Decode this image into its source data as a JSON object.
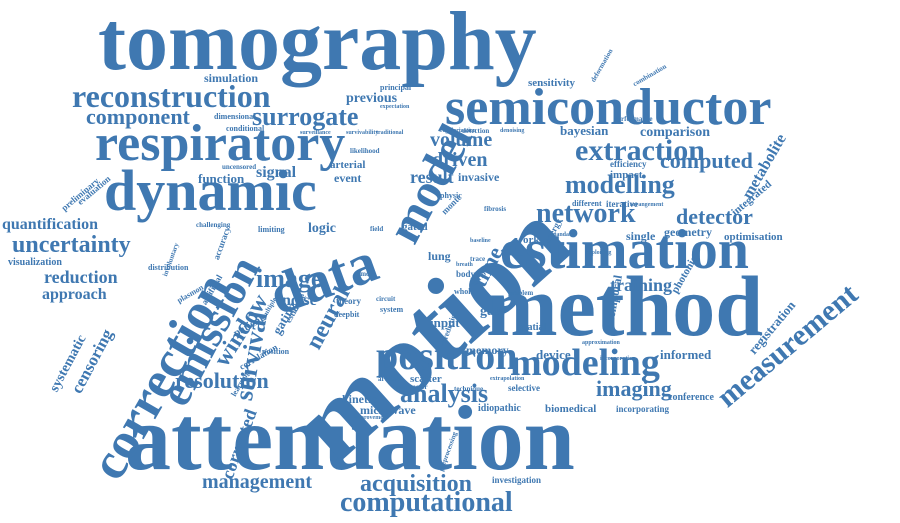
{
  "word_cloud": {
    "color": "#3f78b1",
    "background": "#ffffff",
    "words": [
      {
        "key": "tomography",
        "text": "tomography"
      },
      {
        "key": "attenuation",
        "text": "attenuation"
      },
      {
        "key": "motion",
        "text": "motion"
      },
      {
        "key": "method",
        "text": "method"
      },
      {
        "key": "semiconductor",
        "text": "semiconductor"
      },
      {
        "key": "respiratory",
        "text": "respiratory"
      },
      {
        "key": "dynamic",
        "text": "dynamic"
      },
      {
        "key": "reconstruction",
        "text": "reconstruction"
      },
      {
        "key": "estimation",
        "text": "estimation"
      },
      {
        "key": "correction",
        "text": "correction"
      },
      {
        "key": "emission",
        "text": "emission"
      },
      {
        "key": "data",
        "text": "data"
      },
      {
        "key": "model",
        "text": "model"
      },
      {
        "key": "positron",
        "text": "positron"
      },
      {
        "key": "modeling",
        "text": "modeling"
      },
      {
        "key": "measurement",
        "text": "measurement"
      },
      {
        "key": "network",
        "text": "network"
      },
      {
        "key": "modelling",
        "text": "modelling"
      },
      {
        "key": "extraction",
        "text": "extraction"
      },
      {
        "key": "computational",
        "text": "computational"
      },
      {
        "key": "acquisition",
        "text": "acquisition"
      },
      {
        "key": "management",
        "text": "management"
      },
      {
        "key": "surrogate",
        "text": "surrogate"
      },
      {
        "key": "component",
        "text": "component"
      },
      {
        "key": "uncertainty",
        "text": "uncertainty"
      },
      {
        "key": "analysis",
        "text": "analysis"
      },
      {
        "key": "image",
        "text": "image"
      },
      {
        "key": "survival",
        "text": "survival"
      },
      {
        "key": "window",
        "text": "window"
      },
      {
        "key": "resolution",
        "text": "resolution"
      },
      {
        "key": "neural",
        "text": "neural"
      },
      {
        "key": "volume",
        "text": "volume"
      },
      {
        "key": "driven",
        "text": "driven"
      },
      {
        "key": "result",
        "text": "result"
      },
      {
        "key": "computed",
        "text": "computed"
      },
      {
        "key": "detector",
        "text": "detector"
      },
      {
        "key": "metabolite",
        "text": "metabolite"
      },
      {
        "key": "imaging",
        "text": "imaging"
      },
      {
        "key": "training",
        "text": "training"
      },
      {
        "key": "registration",
        "text": "registration"
      },
      {
        "key": "time",
        "text": "time"
      },
      {
        "key": "reduction",
        "text": "reduction"
      },
      {
        "key": "approach",
        "text": "approach"
      },
      {
        "key": "quantification",
        "text": "quantification"
      },
      {
        "key": "correction2",
        "text": "corrected"
      },
      {
        "key": "censoring",
        "text": "censoring"
      },
      {
        "key": "systematic",
        "text": "systematic"
      },
      {
        "key": "signal",
        "text": "signal"
      },
      {
        "key": "function",
        "text": "function"
      },
      {
        "key": "simulation",
        "text": "simulation"
      },
      {
        "key": "previous",
        "text": "previous"
      },
      {
        "key": "comparison",
        "text": "comparison"
      },
      {
        "key": "bayesian",
        "text": "bayesian"
      },
      {
        "key": "sensitivity",
        "text": "sensitivity"
      },
      {
        "key": "optimisation",
        "text": "optimisation"
      },
      {
        "key": "geometry",
        "text": "geometry"
      },
      {
        "key": "single",
        "text": "single"
      },
      {
        "key": "integrated",
        "text": "integrated"
      },
      {
        "key": "impact",
        "text": "impact"
      },
      {
        "key": "efficiency",
        "text": "efficiency"
      },
      {
        "key": "iterative",
        "text": "iterative"
      },
      {
        "key": "photonic",
        "text": "photonic"
      },
      {
        "key": "temporal",
        "text": "temporal"
      },
      {
        "key": "informed",
        "text": "informed"
      },
      {
        "key": "device",
        "text": "device"
      },
      {
        "key": "memory",
        "text": "memory"
      },
      {
        "key": "scatter",
        "text": "scatter"
      },
      {
        "key": "conference",
        "text": "conference"
      },
      {
        "key": "incorporating",
        "text": "incorporating"
      },
      {
        "key": "biomedical",
        "text": "biomedical"
      },
      {
        "key": "idiopathic",
        "text": "idiopathic"
      },
      {
        "key": "microwave",
        "text": "microwave"
      },
      {
        "key": "kinetic",
        "text": "kinetic"
      },
      {
        "key": "investigation",
        "text": "investigation"
      },
      {
        "key": "selective",
        "text": "selective"
      },
      {
        "key": "gate",
        "text": "gate"
      },
      {
        "key": "input",
        "text": "input"
      },
      {
        "key": "spatial",
        "text": "spatial"
      },
      {
        "key": "logic",
        "text": "logic"
      },
      {
        "key": "noise",
        "text": "noise"
      },
      {
        "key": "patient",
        "text": "patient"
      },
      {
        "key": "gating",
        "text": "gating"
      },
      {
        "key": "position",
        "text": "position"
      },
      {
        "key": "correlation",
        "text": "correlation"
      },
      {
        "key": "learning",
        "text": "learning"
      },
      {
        "key": "accuracy",
        "text": "accuracy"
      },
      {
        "key": "visualization",
        "text": "visualization"
      },
      {
        "key": "distribution",
        "text": "distribution"
      },
      {
        "key": "evaluation",
        "text": "evaluation"
      },
      {
        "key": "preliminary",
        "text": "preliminary"
      },
      {
        "key": "conditional",
        "text": "conditional"
      },
      {
        "key": "dimensional",
        "text": "dimensional"
      },
      {
        "key": "arterial",
        "text": "arterial"
      },
      {
        "key": "event",
        "text": "event"
      },
      {
        "key": "invasive",
        "text": "invasive"
      },
      {
        "key": "gated",
        "text": "gated"
      },
      {
        "key": "lung",
        "text": "lung"
      },
      {
        "key": "work",
        "text": "work"
      },
      {
        "key": "principal",
        "text": "principal"
      },
      {
        "key": "detection",
        "text": "detection"
      },
      {
        "key": "performance",
        "text": "performance"
      },
      {
        "key": "combination",
        "text": "combination"
      },
      {
        "key": "deformation",
        "text": "deformation"
      },
      {
        "key": "energy",
        "text": "energy"
      },
      {
        "key": "different",
        "text": "different"
      },
      {
        "key": "monte",
        "text": "monte"
      },
      {
        "key": "carlo",
        "text": "carlo"
      },
      {
        "key": "physic",
        "text": "physic"
      },
      {
        "key": "body",
        "text": "body"
      },
      {
        "key": "whole",
        "text": "whole"
      },
      {
        "key": "problem",
        "text": "problem"
      },
      {
        "key": "prediction",
        "text": "prediction"
      },
      {
        "key": "system",
        "text": "system"
      },
      {
        "key": "theory",
        "text": "theory"
      },
      {
        "key": "deepbit",
        "text": "deepbit"
      },
      {
        "key": "parameter",
        "text": "parameter"
      },
      {
        "key": "technique",
        "text": "technique"
      },
      {
        "key": "artefact",
        "text": "artefact"
      },
      {
        "key": "preprocessing",
        "text": "preprocessing"
      },
      {
        "key": "tumor",
        "text": "tumor"
      },
      {
        "key": "circuit",
        "text": "circuit"
      },
      {
        "key": "fibrosis",
        "text": "fibrosis"
      },
      {
        "key": "likelihood",
        "text": "likelihood"
      },
      {
        "key": "uncensored",
        "text": "uncensored"
      },
      {
        "key": "limiting",
        "text": "limiting"
      },
      {
        "key": "artificial",
        "text": "artificial"
      },
      {
        "key": "involuntary",
        "text": "involuntary"
      },
      {
        "key": "challenging",
        "text": "challenging"
      },
      {
        "key": "multiple",
        "text": "multiple"
      },
      {
        "key": "estimate",
        "text": "estimate"
      },
      {
        "key": "plasmon",
        "text": "plasmon"
      },
      {
        "key": "field",
        "text": "field"
      },
      {
        "key": "trace",
        "text": "trace"
      },
      {
        "key": "breath",
        "text": "breath"
      },
      {
        "key": "approximation",
        "text": "approximation"
      },
      {
        "key": "extrapolation",
        "text": "extrapolation"
      },
      {
        "key": "improvement",
        "text": "improvement"
      },
      {
        "key": "survivability",
        "text": "survivability"
      },
      {
        "key": "traditional",
        "text": "traditional"
      },
      {
        "key": "surveillance",
        "text": "surveillance"
      },
      {
        "key": "denoising",
        "text": "denoising"
      },
      {
        "key": "regularization",
        "text": "regularization"
      },
      {
        "key": "expectation",
        "text": "expectation"
      },
      {
        "key": "baseline",
        "text": "baseline"
      },
      {
        "key": "standard",
        "text": "standard"
      },
      {
        "key": "arrangement",
        "text": "arrangement"
      },
      {
        "key": "exploiting",
        "text": "exploiting"
      },
      {
        "key": "incorporation",
        "text": "incorporation"
      }
    ]
  }
}
